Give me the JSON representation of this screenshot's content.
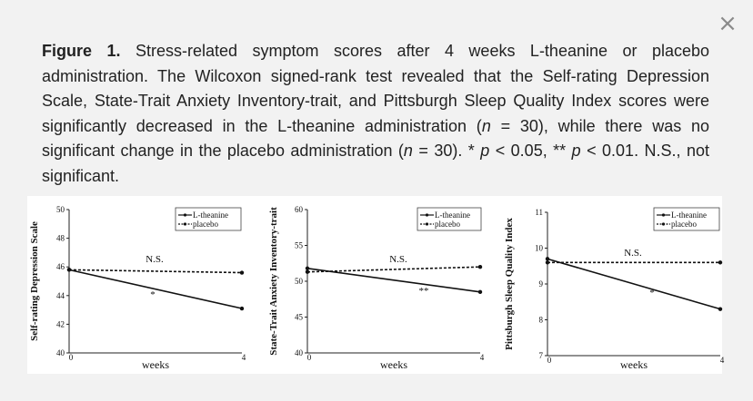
{
  "dialog": {
    "close_symbol": "×"
  },
  "caption": {
    "label": "Figure 1.",
    "text_1": " Stress-related symptom scores after 4 weeks L-theanine or placebo administration. The Wilcoxon signed-rank test revealed that the Self-rating Depression Scale, State-Trait Anxiety Inventory-trait, and Pittsburgh Sleep Quality Index scores were significantly decreased in the L-theanine administration (",
    "n_symbol_1": "n",
    "text_2": " = 30), while there was no significant change in the placebo administration (",
    "n_symbol_2": "n",
    "text_3": " = 30). * ",
    "p_symbol_1": "p",
    "text_4": " < 0.05, ** ",
    "p_symbol_2": "p",
    "text_5": " < 0.01. N.S., not significant."
  },
  "chart_data": [
    {
      "type": "line",
      "ylabel": "Self-rating Depression Scale",
      "xlabel": "weeks",
      "x": [
        0,
        4
      ],
      "xticks": [
        "0",
        "4"
      ],
      "ylim": [
        40,
        50
      ],
      "yticks": [
        "40",
        "42",
        "44",
        "46",
        "48",
        "50"
      ],
      "series": [
        {
          "name": "L-theanine",
          "values": [
            45.8,
            43.1
          ],
          "style": "solid"
        },
        {
          "name": "placebo",
          "values": [
            45.8,
            45.6
          ],
          "style": "dashed"
        }
      ],
      "annotations": {
        "placebo": "N.S.",
        "l_theanine": "*"
      },
      "legend": "top-right",
      "grid": false
    },
    {
      "type": "line",
      "ylabel": "State-Trait Anxiety Inventory-trait",
      "xlabel": "weeks",
      "x": [
        0,
        4
      ],
      "xticks": [
        "0",
        "4"
      ],
      "ylim": [
        40,
        60
      ],
      "yticks": [
        "40",
        "45",
        "50",
        "55",
        "60"
      ],
      "series": [
        {
          "name": "L-theanine",
          "values": [
            51.8,
            48.5
          ],
          "style": "solid"
        },
        {
          "name": "placebo",
          "values": [
            51.3,
            52.0
          ],
          "style": "dashed"
        }
      ],
      "annotations": {
        "placebo": "N.S.",
        "l_theanine": "**"
      },
      "legend": "top-right",
      "grid": false
    },
    {
      "type": "line",
      "ylabel": "Pittsburgh Sleep Quality Index",
      "xlabel": "weeks",
      "x": [
        0,
        4
      ],
      "xticks": [
        "0",
        "4"
      ],
      "ylim": [
        7,
        11
      ],
      "yticks": [
        "7",
        "8",
        "9",
        "10",
        "11"
      ],
      "series": [
        {
          "name": "L-theanine",
          "values": [
            9.7,
            8.3
          ],
          "style": "solid"
        },
        {
          "name": "placebo",
          "values": [
            9.6,
            9.6
          ],
          "style": "dashed"
        }
      ],
      "annotations": {
        "placebo": "N.S.",
        "l_theanine": "*"
      },
      "legend": "top-right",
      "grid": false
    }
  ]
}
